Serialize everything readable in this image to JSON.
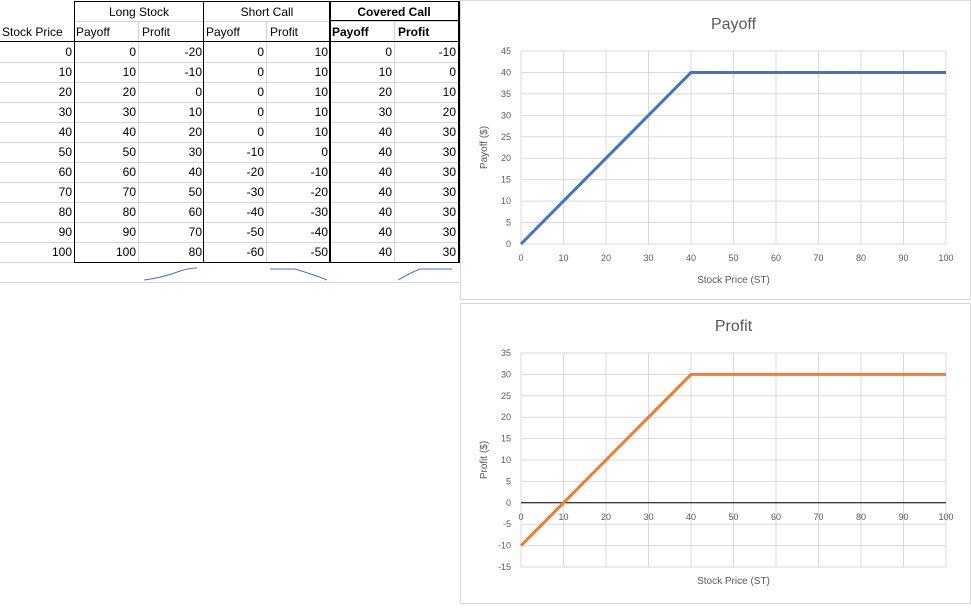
{
  "table": {
    "group_headers": {
      "long_stock": "Long Stock",
      "short_call": "Short Call",
      "covered_call": "Covered Call"
    },
    "columns": [
      "Stock Price",
      "Payoff",
      "Profit",
      "Payoff",
      "Profit",
      "Payoff",
      "Profit"
    ],
    "rows": [
      [
        0,
        0,
        -20,
        0,
        10,
        0,
        -10
      ],
      [
        10,
        10,
        -10,
        0,
        10,
        10,
        0
      ],
      [
        20,
        20,
        0,
        0,
        10,
        20,
        10
      ],
      [
        30,
        30,
        10,
        0,
        10,
        30,
        20
      ],
      [
        40,
        40,
        20,
        0,
        10,
        40,
        30
      ],
      [
        50,
        50,
        30,
        -10,
        0,
        40,
        30
      ],
      [
        60,
        60,
        40,
        -20,
        -10,
        40,
        30
      ],
      [
        70,
        70,
        50,
        -30,
        -20,
        40,
        30
      ],
      [
        80,
        80,
        60,
        -40,
        -30,
        40,
        30
      ],
      [
        90,
        90,
        70,
        -50,
        -40,
        40,
        30
      ],
      [
        100,
        100,
        80,
        -60,
        -50,
        40,
        30
      ]
    ]
  },
  "sketch_color": "#4472c4",
  "chart_data": [
    {
      "type": "line",
      "title": "Payoff",
      "xlabel": "Stock Price (ST)",
      "ylabel": "Payoff ($)",
      "x": [
        0,
        10,
        20,
        30,
        40,
        50,
        60,
        70,
        80,
        90,
        100
      ],
      "xticks": [
        0,
        10,
        20,
        30,
        40,
        50,
        60,
        70,
        80,
        90,
        100
      ],
      "yticks": [
        0,
        5,
        10,
        15,
        20,
        25,
        30,
        35,
        40,
        45
      ],
      "xlim": [
        0,
        100
      ],
      "ylim": [
        0,
        45
      ],
      "grid": true,
      "color": "#4472c4",
      "series": [
        {
          "values": [
            0,
            10,
            20,
            30,
            40,
            40,
            40,
            40,
            40,
            40,
            40
          ]
        }
      ]
    },
    {
      "type": "line",
      "title": "Profit",
      "xlabel": "Stock Price (ST)",
      "ylabel": "Profit ($)",
      "x": [
        0,
        10,
        20,
        30,
        40,
        50,
        60,
        70,
        80,
        90,
        100
      ],
      "xticks": [
        0,
        10,
        20,
        30,
        40,
        50,
        60,
        70,
        80,
        90,
        100
      ],
      "yticks": [
        -15,
        -10,
        -5,
        0,
        5,
        10,
        15,
        20,
        25,
        30,
        35
      ],
      "xlim": [
        0,
        100
      ],
      "ylim": [
        -15,
        35
      ],
      "grid": true,
      "color": "#ed7d31",
      "series": [
        {
          "values": [
            -10,
            0,
            10,
            20,
            30,
            30,
            30,
            30,
            30,
            30,
            30
          ]
        }
      ]
    }
  ]
}
